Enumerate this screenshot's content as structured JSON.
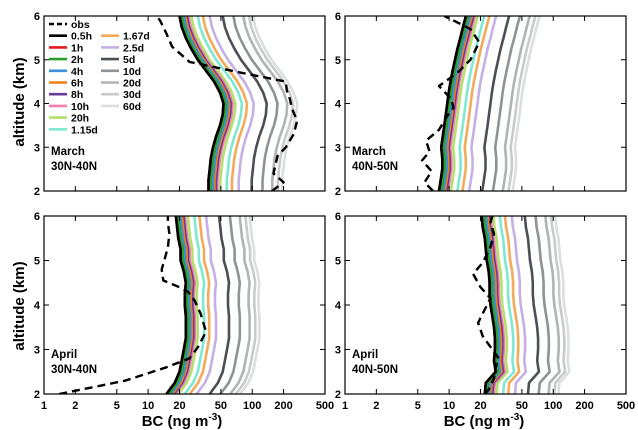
{
  "chart_data": {
    "type": "line",
    "xlabel": "BC (ng m",
    "xlabel_sup": "-3",
    "xlabel_close": ")",
    "ylabel": "altitude (km)",
    "xscale": "log",
    "xlim": [
      1,
      500
    ],
    "ylim": [
      2,
      6
    ],
    "xticks": [
      "1",
      "2",
      "5",
      "10",
      "20",
      "50",
      "100",
      "200",
      "500"
    ],
    "yticks": [
      "2",
      "3",
      "4",
      "5",
      "6"
    ],
    "legend": {
      "placement": "top-left of first panel",
      "entries": [
        {
          "name": "obs",
          "color": "#000000",
          "dashed": true
        },
        {
          "name": "0.5h",
          "color": "#000000"
        },
        {
          "name": "1h",
          "color": "#e41a1c"
        },
        {
          "name": "2h",
          "color": "#2ca02c"
        },
        {
          "name": "4h",
          "color": "#3b8fd6"
        },
        {
          "name": "6h",
          "color": "#f07f12"
        },
        {
          "name": "8h",
          "color": "#6a3d9a"
        },
        {
          "name": "10h",
          "color": "#f07fae"
        },
        {
          "name": "20h",
          "color": "#b3e06b"
        },
        {
          "name": "1.15d",
          "color": "#7fe8d0"
        },
        {
          "name": "1.67d",
          "color": "#f5a95a"
        },
        {
          "name": "2.5d",
          "color": "#c5b0e6"
        },
        {
          "name": "5d",
          "color": "#4a5055"
        },
        {
          "name": "10d",
          "color": "#8e9397"
        },
        {
          "name": "20d",
          "color": "#b0b4b7"
        },
        {
          "name": "30d",
          "color": "#c8cbcd"
        },
        {
          "name": "60d",
          "color": "#dcdedf"
        }
      ]
    },
    "panels": [
      {
        "label_line1": "March",
        "label_line2": "30N-40N",
        "altitudes": [
          2.0,
          2.25,
          2.5,
          2.75,
          3.0,
          3.25,
          3.5,
          3.75,
          4.0,
          4.25,
          4.5,
          4.75,
          5.0,
          5.25,
          5.5,
          5.75,
          6.0
        ],
        "base": [
          38,
          38,
          39,
          40,
          42,
          45,
          49,
          52,
          53,
          49,
          43,
          36,
          30,
          26,
          23,
          21,
          20
        ],
        "obs": {
          "x": [
            155,
            200,
            160,
            175,
            210,
            250,
            270,
            240,
            230,
            215,
            210,
            80,
            25,
            17,
            15,
            13,
            12
          ],
          "y": [
            2.0,
            2.2,
            2.4,
            2.8,
            3.0,
            3.3,
            3.6,
            3.9,
            4.1,
            4.3,
            4.5,
            4.7,
            4.95,
            5.3,
            5.6,
            5.9,
            6.0
          ]
        }
      },
      {
        "label_line1": "March",
        "label_line2": "40N-50N",
        "altitudes": [
          2.0,
          2.25,
          2.5,
          2.75,
          3.0,
          3.25,
          3.5,
          3.75,
          4.0,
          4.25,
          4.5,
          4.75,
          5.0,
          5.25,
          5.5,
          5.75,
          6.0
        ],
        "base": [
          8,
          8.3,
          8.6,
          8.6,
          8.4,
          8.7,
          9.0,
          9.3,
          9.6,
          9.9,
          10.3,
          10.8,
          11.4,
          12.0,
          12.8,
          13.6,
          14.5
        ],
        "obs": {
          "x": [
            7,
            5.8,
            6.8,
            5.5,
            6.5,
            6.0,
            8.0,
            9.5,
            11.0,
            10.5,
            8.0,
            12.0,
            16.0,
            19.5,
            16.0,
            11.0,
            9.0
          ],
          "y": [
            2.0,
            2.2,
            2.45,
            2.7,
            2.9,
            3.15,
            3.4,
            3.7,
            3.9,
            4.1,
            4.4,
            4.7,
            5.0,
            5.4,
            5.7,
            5.9,
            6.0
          ]
        }
      },
      {
        "label_line1": "April",
        "label_line2": "30N-40N",
        "altitudes": [
          2.0,
          2.25,
          2.5,
          2.75,
          3.0,
          3.25,
          3.5,
          3.75,
          4.0,
          4.25,
          4.5,
          4.75,
          5.0,
          5.25,
          5.5,
          5.75,
          6.0
        ],
        "base": [
          15,
          18,
          20,
          21,
          22,
          23,
          23,
          23,
          22.5,
          22.5,
          23,
          22,
          20.5,
          20.5,
          19.5,
          19,
          18.5
        ],
        "obs": {
          "x": [
            1.4,
            6.0,
            15.0,
            25.0,
            30.0,
            36.0,
            32.0,
            28.0,
            24.0,
            20.0,
            14.0,
            13.5,
            14.5,
            15.5,
            16.0,
            15.5,
            15.5
          ],
          "y": [
            2.0,
            2.3,
            2.6,
            2.8,
            3.05,
            3.4,
            3.8,
            4.1,
            4.3,
            4.4,
            4.55,
            4.8,
            5.05,
            5.3,
            5.6,
            5.85,
            6.0
          ]
        }
      },
      {
        "label_line1": "April",
        "label_line2": "40N-50N",
        "altitudes": [
          2.0,
          2.25,
          2.5,
          2.75,
          3.0,
          3.25,
          3.5,
          3.75,
          4.0,
          4.25,
          4.5,
          4.75,
          5.0,
          5.25,
          5.5,
          5.75,
          6.0
        ],
        "base": [
          22,
          22.5,
          28,
          27,
          27.5,
          27.5,
          27,
          26,
          25,
          24.5,
          24.5,
          24,
          23,
          22.5,
          22,
          21,
          20.5
        ],
        "obs": {
          "x": [
            22,
            24,
            27,
            28,
            30,
            26,
            21,
            19,
            22,
            25,
            20,
            17,
            21,
            25,
            27,
            25,
            26
          ],
          "y": [
            2.0,
            2.1,
            2.35,
            2.6,
            2.8,
            3.0,
            3.3,
            3.6,
            3.9,
            4.15,
            4.4,
            4.7,
            4.95,
            5.3,
            5.6,
            5.85,
            6.0
          ]
        }
      }
    ],
    "series_multipliers": [
      1.0,
      1.0,
      1.05,
      1.1,
      1.14,
      1.18,
      1.22,
      1.3,
      1.5,
      1.68,
      1.95,
      2.6,
      3.3,
      4.1,
      4.65,
      5.1
    ],
    "series_names": [
      "0.5h",
      "1h",
      "2h",
      "4h",
      "6h",
      "8h",
      "10h",
      "20h",
      "1.15d",
      "1.67d",
      "2.5d",
      "5d",
      "10d",
      "20d",
      "30d",
      "60d"
    ]
  }
}
